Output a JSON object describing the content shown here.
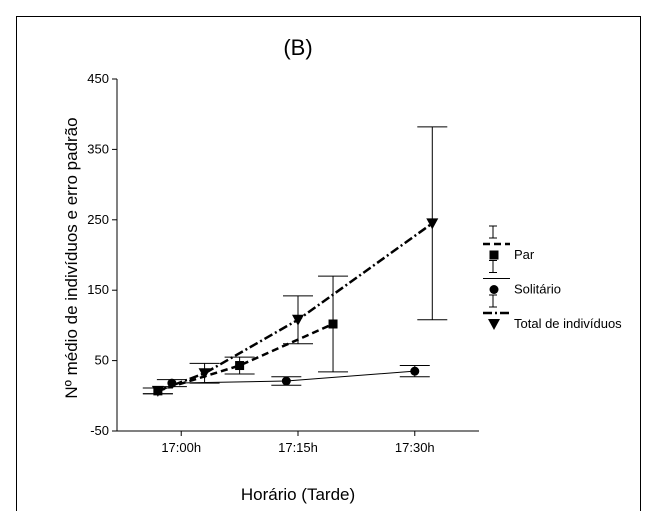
{
  "chart_data": {
    "type": "line",
    "title": "(B)",
    "xlabel": "Horário (Tarde)",
    "ylabel": "Nº médio de indivíduos e erro padrão",
    "ylim": [
      -50,
      450
    ],
    "yticks": [
      -50,
      50,
      150,
      250,
      350,
      450
    ],
    "xticks": [
      {
        "value": 1,
        "label": "17:00h"
      },
      {
        "value": 2,
        "label": "17:15h"
      },
      {
        "value": 3,
        "label": "17:30h"
      }
    ],
    "xlim": [
      0.45,
      3.55
    ],
    "grid": false,
    "legend_position": "right",
    "series": [
      {
        "name": "Par",
        "style": "dashed",
        "marker": "square",
        "points": [
          {
            "x": 0.8,
            "y": 7,
            "err": 4
          },
          {
            "x": 1.5,
            "y": 43,
            "err": 12
          },
          {
            "x": 2.3,
            "y": 102,
            "err": 68
          }
        ]
      },
      {
        "name": "Solitário",
        "style": "solid",
        "marker": "circle",
        "points": [
          {
            "x": 0.92,
            "y": 18,
            "err": 5
          },
          {
            "x": 1.9,
            "y": 21,
            "err": 6
          },
          {
            "x": 3.0,
            "y": 35,
            "err": 8
          }
        ]
      },
      {
        "name": "Total de indivíduos",
        "style": "dashdot",
        "marker": "triangle-down",
        "points": [
          {
            "x": 0.8,
            "y": 7,
            "err": 4
          },
          {
            "x": 1.2,
            "y": 32,
            "err": 14
          },
          {
            "x": 2.0,
            "y": 108,
            "err": 34
          },
          {
            "x": 3.15,
            "y": 245,
            "err": 137
          }
        ]
      }
    ]
  }
}
